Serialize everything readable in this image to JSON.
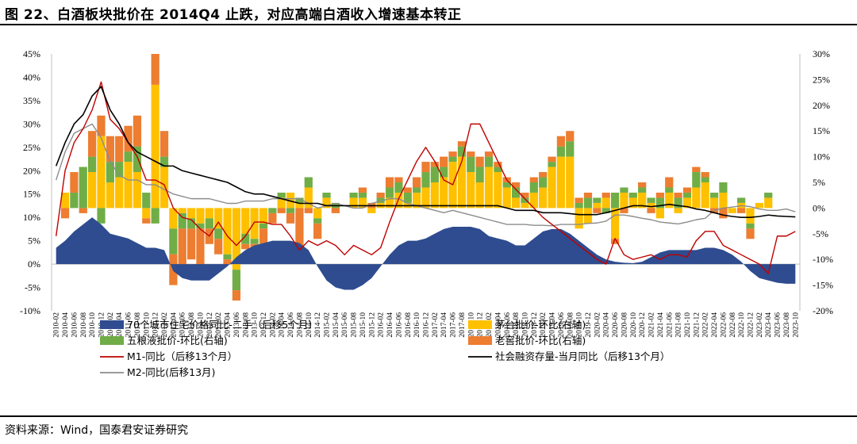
{
  "figure": {
    "title": "图 22、白酒板块批价在 2014Q4 止跌，对应高端白酒收入增速基本转正",
    "source": "资料来源：Wind，国泰君安证券研究"
  },
  "colors": {
    "house": "#2E4C8F",
    "moutai": "#FFC000",
    "wuliangye": "#70AD47",
    "laojiao": "#ED7D31",
    "m1": "#C00000",
    "tsf": "#000000",
    "m2": "#8C8C8C"
  },
  "chart_data": {
    "type": "area",
    "x": [
      "2010-02",
      "2010-04",
      "2010-06",
      "2010-08",
      "2010-10",
      "2010-12",
      "2011-02",
      "2011-04",
      "2011-06",
      "2011-08",
      "2011-10",
      "2011-12",
      "2012-02",
      "2012-04",
      "2012-06",
      "2012-08",
      "2012-10",
      "2012-12",
      "2013-02",
      "2013-04",
      "2013-06",
      "2013-08",
      "2013-10",
      "2013-12",
      "2014-02",
      "2014-04",
      "2014-06",
      "2014-08",
      "2014-10",
      "2014-12",
      "2015-02",
      "2015-04",
      "2015-06",
      "2015-08",
      "2015-10",
      "2015-12",
      "2016-02",
      "2016-04",
      "2016-06",
      "2016-08",
      "2016-10",
      "2016-12",
      "2017-02",
      "2017-04",
      "2017-06",
      "2017-08",
      "2017-10",
      "2017-12",
      "2018-02",
      "2018-04",
      "2018-06",
      "2018-08",
      "2018-10",
      "2018-12",
      "2019-02",
      "2019-04",
      "2019-06",
      "2019-08",
      "2019-10",
      "2019-12",
      "2020-02",
      "2020-04",
      "2020-06",
      "2020-08",
      "2020-10",
      "2020-12",
      "2021-02",
      "2021-04",
      "2021-06",
      "2021-08",
      "2021-10",
      "2021-12",
      "2022-02",
      "2022-04",
      "2022-06",
      "2022-08",
      "2022-10",
      "2022-12",
      "2023-02",
      "2023-04",
      "2023-06",
      "2023-08",
      "2023-10"
    ],
    "left_axis": {
      "ylim": [
        -10,
        45
      ],
      "ticks": [
        "45%",
        "40%",
        "35%",
        "30%",
        "25%",
        "20%",
        "15%",
        "10%",
        "5%",
        "0%",
        "-5%",
        "-10%"
      ]
    },
    "right_axis": {
      "ylim": [
        -20,
        30
      ],
      "ticks": [
        "30%",
        "25%",
        "20%",
        "15%",
        "10%",
        "5%",
        "0%",
        "-5%",
        "-10%",
        "-15%",
        "-20%"
      ]
    },
    "legend": {
      "house": "70个城市住宅价格同比-二手（后移5个月）",
      "moutai": "茅台批价-环比(右轴)",
      "wuliangye": "五粮液批价-环比(右轴)",
      "laojiao": "老窖批价-环比(右轴)",
      "m1": "M1-同比（后移13个月）",
      "tsf": "社会融资存量-当月同比（后移13个月）",
      "m2": "M2-同比(后移13月)"
    },
    "series": [
      {
        "key": "house",
        "axis": "left",
        "kind": "area",
        "values": [
          3.5,
          5,
          7,
          8.5,
          10,
          8.5,
          6.5,
          6,
          5.5,
          4.5,
          3.5,
          3.5,
          3,
          -1.5,
          -3,
          -3.5,
          -3.5,
          -3.5,
          -2,
          -0.5,
          1.5,
          3,
          4,
          4.5,
          5,
          5,
          5,
          4.5,
          3,
          -0.5,
          -3.5,
          -5,
          -5.5,
          -5.5,
          -4.5,
          -3,
          -0.5,
          2,
          4,
          5,
          5,
          5.5,
          6.5,
          7.5,
          8,
          8,
          8,
          7.5,
          6,
          5.5,
          5,
          4,
          4,
          5.5,
          7,
          7.5,
          7.5,
          6.5,
          5,
          3.5,
          2,
          1,
          0.5,
          0.3,
          0.2,
          0.5,
          1.5,
          2.5,
          3,
          3,
          3,
          3,
          3.5,
          3.5,
          3,
          2,
          0.5,
          -1.5,
          -3,
          -3.5,
          -4,
          -4.2,
          -4.2
        ]
      },
      {
        "key": "m1",
        "axis": "left",
        "kind": "line",
        "values": [
          6,
          20,
          26,
          29,
          33,
          39,
          31,
          29,
          26,
          23,
          18,
          18,
          17,
          12,
          10,
          9.5,
          7.5,
          6,
          9,
          6,
          4,
          6,
          9,
          9,
          8.5,
          8.5,
          6,
          3,
          5,
          4,
          5,
          4,
          2,
          4,
          3,
          2,
          3.5,
          9,
          14,
          18,
          22,
          25,
          22,
          18,
          17,
          22,
          30,
          30,
          26,
          22,
          18,
          16,
          14,
          12,
          10,
          8.5,
          7,
          5.5,
          4,
          2.5,
          1,
          0,
          5.5,
          2,
          1,
          1.5,
          2,
          1,
          2,
          2,
          1.5,
          5,
          7,
          7,
          4,
          3,
          2,
          1,
          0,
          -2,
          6,
          6,
          7
        ]
      },
      {
        "key": "tsf",
        "axis": "left",
        "kind": "line",
        "values": [
          21,
          26,
          30,
          32,
          36,
          38,
          33,
          30,
          26,
          24,
          23,
          22,
          21,
          21,
          20,
          19.5,
          19,
          18.5,
          18,
          17.5,
          16.5,
          15.5,
          15,
          15,
          14.5,
          14,
          13.5,
          13,
          13,
          13,
          12.5,
          12.5,
          12.5,
          12.5,
          12.5,
          12.5,
          12.5,
          12.5,
          12.5,
          12.5,
          12.5,
          12.5,
          12.5,
          12.5,
          12.5,
          12.5,
          12.5,
          12.5,
          12.5,
          12.5,
          12,
          11.5,
          11.5,
          11.5,
          11,
          11,
          11,
          10.8,
          10.6,
          10.6,
          10.6,
          11,
          11.5,
          12,
          12.5,
          12.5,
          12.3,
          12.5,
          12.8,
          12.5,
          12.3,
          11.8,
          11.5,
          11,
          10.5,
          10.2,
          10,
          10,
          10.2,
          10.5,
          10.3,
          10.2,
          10.1
        ]
      },
      {
        "key": "m2",
        "axis": "left",
        "kind": "line",
        "values": [
          18,
          24,
          28,
          29,
          30,
          27,
          22,
          19,
          18,
          18,
          17,
          17,
          16,
          15,
          14.5,
          14,
          14,
          14,
          13.5,
          13,
          13,
          13.5,
          13.5,
          13.5,
          14,
          14,
          14,
          14,
          13,
          12,
          12.5,
          13,
          12.5,
          12,
          12,
          13,
          13.5,
          14,
          14,
          13,
          12.5,
          12,
          11.5,
          11,
          11.5,
          11,
          10.5,
          10,
          9.5,
          9,
          8.5,
          8.5,
          8.5,
          8.3,
          8.3,
          8.2,
          8.5,
          8.5,
          8.5,
          8.7,
          8.8,
          9.2,
          10.5,
          10.5,
          10.2,
          9.8,
          9.5,
          9,
          8.8,
          8.6,
          9,
          9.5,
          9.8,
          11.5,
          12,
          12.2,
          12.5,
          12.3,
          11.8,
          11.5,
          11.5,
          11.8,
          11.2
        ]
      },
      {
        "key": "moutai",
        "axis": "right",
        "kind": "bar",
        "values": [
          0,
          3,
          0,
          0,
          7,
          14,
          5,
          6,
          9,
          7,
          -2,
          24,
          8,
          -4,
          -1,
          -2,
          -3,
          -2,
          -4,
          -9,
          -12,
          -5,
          -6,
          -3,
          0,
          2,
          3,
          1,
          4,
          -2,
          2,
          0,
          0,
          2,
          2,
          -1,
          1,
          2,
          3,
          1,
          3,
          4,
          5,
          6,
          9,
          10,
          7,
          5,
          8,
          7,
          4,
          2,
          1,
          3,
          4,
          8,
          10,
          10,
          -4,
          -3,
          1,
          2,
          -6,
          3,
          2,
          3,
          1,
          -2,
          3,
          -1,
          2,
          4,
          5,
          2,
          3,
          -1,
          1,
          -3,
          1,
          2,
          0,
          0,
          0
        ]
      },
      {
        "key": "wuliangye",
        "axis": "right",
        "kind": "bar",
        "values": [
          0,
          0,
          3,
          8,
          3,
          -3,
          4,
          3,
          2,
          5,
          3,
          -3,
          2,
          -5,
          -3,
          -2,
          -1,
          -2,
          -2,
          -1,
          -4,
          -2,
          -1,
          -1,
          -1,
          1,
          -1,
          1,
          2,
          -1,
          1,
          1,
          0,
          1,
          1,
          0,
          1,
          2,
          2,
          2,
          1,
          3,
          3,
          2,
          1,
          2,
          3,
          3,
          2,
          1,
          1,
          2,
          1,
          2,
          2,
          1,
          2,
          3,
          1,
          2,
          1,
          -1,
          3,
          1,
          1,
          1,
          1,
          2,
          1,
          2,
          1,
          3,
          1,
          1,
          2,
          0,
          1,
          -1,
          0,
          1,
          0,
          0,
          0
        ]
      },
      {
        "key": "laojiao",
        "axis": "right",
        "kind": "bar",
        "values": [
          0,
          -2,
          4,
          -1,
          5,
          4,
          5,
          5,
          5,
          6,
          -1,
          6,
          5,
          -6,
          -8,
          -6,
          -7,
          -3,
          -3,
          -1,
          -2,
          -1,
          -2,
          -3,
          -2,
          -1,
          -2,
          -10,
          -1,
          -3,
          0,
          -1,
          0,
          0,
          1,
          1,
          1,
          2,
          1,
          1,
          2,
          2,
          1,
          2,
          1,
          1,
          1,
          2,
          1,
          1,
          1,
          1,
          1,
          1,
          1,
          1,
          2,
          2,
          1,
          1,
          -1,
          1,
          -1,
          -1,
          0,
          1,
          -1,
          1,
          2,
          1,
          1,
          1,
          1,
          -1,
          -2,
          0,
          -1,
          -2,
          0,
          0,
          0,
          0,
          0
        ]
      }
    ]
  }
}
